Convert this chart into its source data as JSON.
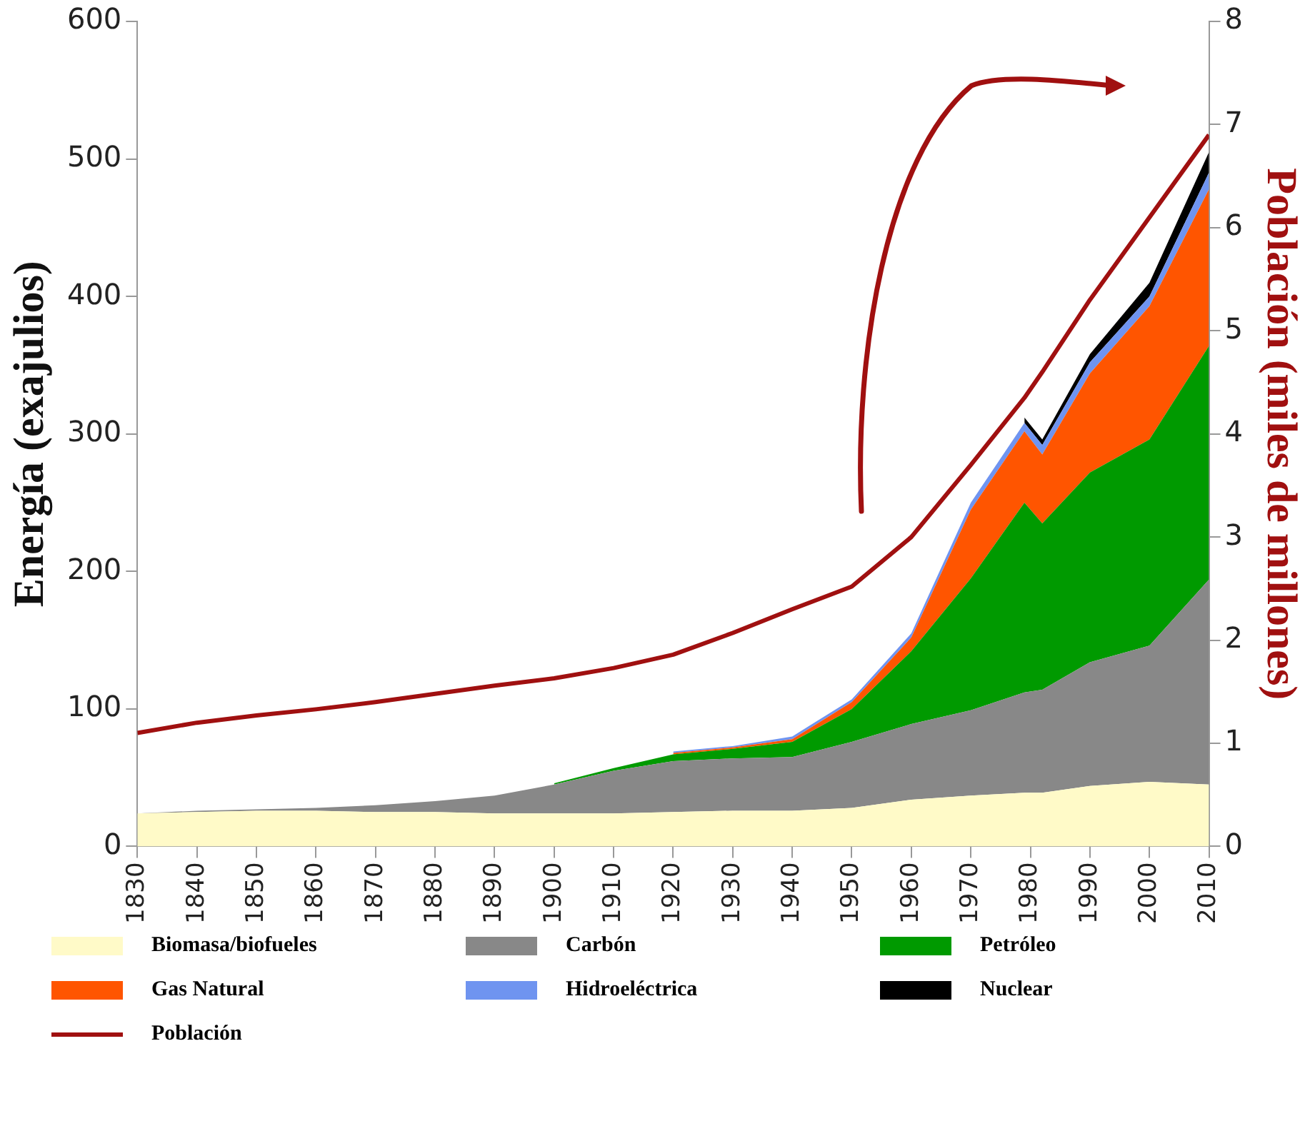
{
  "chart_data": {
    "type": "area",
    "stacked": true,
    "xlabel": null,
    "ylabel": "Energía (exajulios)",
    "y2label": "Población (miles de millones)",
    "legend": "bottom",
    "grid": false,
    "marker": "none",
    "x": [
      1830,
      1840,
      1850,
      1860,
      1870,
      1880,
      1890,
      1900,
      1910,
      1920,
      1930,
      1940,
      1950,
      1960,
      1970,
      1979,
      1982,
      1990,
      2000,
      2010
    ],
    "xlim": [
      1830,
      2010
    ],
    "xticks": [
      1830,
      1840,
      1850,
      1860,
      1870,
      1880,
      1890,
      1900,
      1910,
      1920,
      1930,
      1940,
      1950,
      1960,
      1970,
      1980,
      1990,
      2000,
      2010
    ],
    "ylim": [
      0,
      600
    ],
    "yticks": [
      0,
      100,
      200,
      300,
      400,
      500,
      600
    ],
    "y2lim": [
      0,
      8
    ],
    "y2ticks": [
      0,
      1,
      2,
      3,
      4,
      5,
      6,
      7,
      8
    ],
    "series": [
      {
        "name": "Biomasa/biofueles",
        "color": "#fffac8",
        "values": [
          24,
          25,
          26,
          26,
          25,
          25,
          24,
          24,
          24,
          25,
          26,
          26,
          28,
          34,
          37,
          39,
          39,
          44,
          47,
          45
        ]
      },
      {
        "name": "Carbón",
        "color": "#888888",
        "values": [
          0,
          1,
          1,
          2,
          5,
          8,
          13,
          21,
          31,
          37,
          38,
          39,
          48,
          55,
          62,
          73,
          75,
          90,
          99,
          149
        ]
      },
      {
        "name": "Petróleo",
        "color": "#009a00",
        "values": [
          null,
          null,
          null,
          null,
          null,
          null,
          null,
          1,
          2,
          5,
          7,
          11,
          24,
          53,
          96,
          138,
          121,
          138,
          150,
          170
        ]
      },
      {
        "name": "Gas Natural",
        "color": "#ff5500",
        "values": [
          null,
          null,
          null,
          null,
          null,
          null,
          null,
          null,
          null,
          1,
          1,
          2,
          5,
          10,
          50,
          52,
          50,
          72,
          97,
          114
        ]
      },
      {
        "name": "Hidroeléctrica",
        "color": "#6f94f0",
        "values": [
          null,
          null,
          null,
          null,
          null,
          null,
          null,
          null,
          null,
          1,
          1,
          2,
          2,
          3,
          5,
          6,
          7,
          8,
          7,
          12
        ]
      },
      {
        "name": "Nuclear",
        "color": "#000000",
        "values": [
          null,
          null,
          null,
          null,
          null,
          null,
          null,
          null,
          null,
          null,
          null,
          null,
          null,
          null,
          null,
          4,
          4,
          6,
          10,
          15
        ]
      },
      {
        "name": "Población",
        "type": "line",
        "axis": "y2",
        "color": "#a01010",
        "values": [
          1.1,
          1.2,
          1.27,
          1.33,
          1.4,
          1.48,
          1.56,
          1.63,
          1.73,
          1.86,
          2.07,
          2.3,
          2.52,
          3.0,
          3.7,
          4.35,
          4.6,
          5.3,
          6.1,
          6.9
        ]
      }
    ]
  }
}
